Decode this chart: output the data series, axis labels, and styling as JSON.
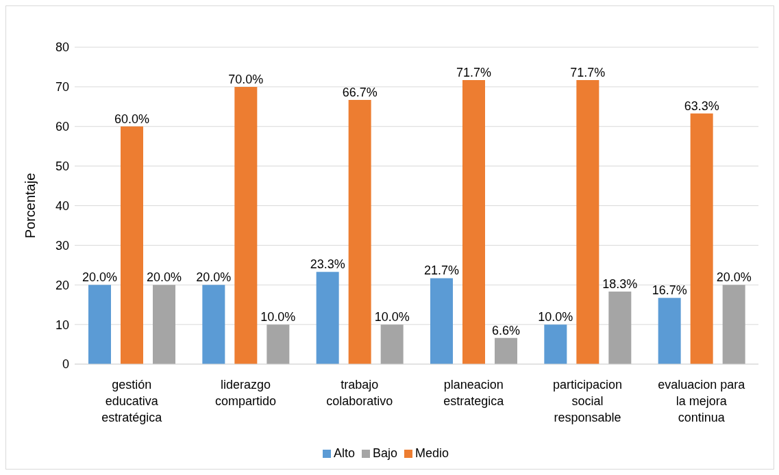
{
  "chart_data": {
    "type": "bar",
    "ylabel": "Porcentaje",
    "categories": [
      "gestión educativa estratégica",
      "liderazgo compartido",
      "trabajo colaborativo",
      "planeacion estrategica",
      "participacion social responsable",
      "evaluacion para la mejora continua"
    ],
    "series": [
      {
        "name": "Alto",
        "color": "#5b9bd5",
        "values": [
          20,
          20,
          23.3,
          21.7,
          10,
          16.7
        ],
        "value_labels": [
          "20.0%",
          "20.0%",
          "23.3%",
          "21.7%",
          "10.0%",
          "16.7%"
        ]
      },
      {
        "name": "Medio",
        "color": "#ed7d31",
        "values": [
          60,
          70,
          66.7,
          71.7,
          71.7,
          63.3
        ],
        "value_labels": [
          "60.0%",
          "70.0%",
          "66.7%",
          "71.7%",
          "71.7%",
          "63.3%"
        ]
      },
      {
        "name": "Bajo",
        "color": "#a5a5a5",
        "values": [
          20,
          10,
          10,
          6.6,
          18.3,
          20
        ],
        "value_labels": [
          "20.0%",
          "10.0%",
          "10.0%",
          "6.6%",
          "18.3%",
          "20.0%"
        ]
      }
    ],
    "ylim": [
      0,
      80
    ],
    "yticks": [
      0,
      10,
      20,
      30,
      40,
      50,
      60,
      70,
      80
    ],
    "grid": "y",
    "legend": "bottom"
  }
}
